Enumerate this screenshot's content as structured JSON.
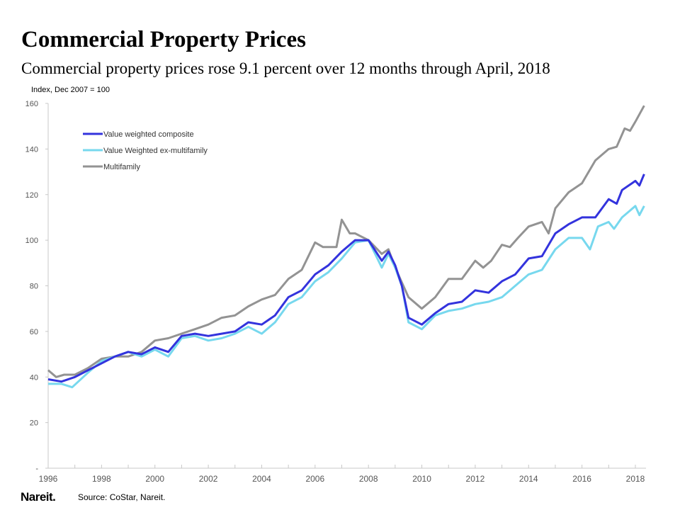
{
  "title": "Commercial Property Prices",
  "subtitle": "Commercial property prices rose 9.1 percent over 12 months through April, 2018",
  "source": "Source: CoStar, Nareit.",
  "logo_text": "Nareit.",
  "chart_data": {
    "type": "line",
    "ylabel": "Index, Dec 2007 = 100",
    "ylim": [
      0,
      160
    ],
    "xlim": [
      1996,
      2018.5
    ],
    "yticks": [
      "-",
      "20",
      "40",
      "60",
      "80",
      "100",
      "120",
      "140",
      "160"
    ],
    "xticks": [
      "1996",
      "1998",
      "2000",
      "2002",
      "2004",
      "2006",
      "2008",
      "2010",
      "2012",
      "2014",
      "2016",
      "2018"
    ],
    "grid": false,
    "legend": "top-left",
    "series": [
      {
        "name": "Value weighted composite",
        "color": "#3333dd",
        "points": [
          [
            1996,
            39
          ],
          [
            1996.5,
            38
          ],
          [
            1997,
            40
          ],
          [
            1997.5,
            43
          ],
          [
            1998,
            46
          ],
          [
            1998.5,
            49
          ],
          [
            1999,
            51
          ],
          [
            1999.5,
            50
          ],
          [
            2000,
            53
          ],
          [
            2000.5,
            51
          ],
          [
            2001,
            58
          ],
          [
            2001.5,
            59
          ],
          [
            2002,
            58
          ],
          [
            2002.5,
            59
          ],
          [
            2003,
            60
          ],
          [
            2003.5,
            64
          ],
          [
            2004,
            63
          ],
          [
            2004.5,
            67
          ],
          [
            2005,
            75
          ],
          [
            2005.5,
            78
          ],
          [
            2006,
            85
          ],
          [
            2006.5,
            89
          ],
          [
            2007,
            95
          ],
          [
            2007.5,
            100
          ],
          [
            2008,
            100
          ],
          [
            2008.5,
            91
          ],
          [
            2008.75,
            95
          ],
          [
            2009,
            89
          ],
          [
            2009.25,
            80
          ],
          [
            2009.5,
            66
          ],
          [
            2010,
            63
          ],
          [
            2010.5,
            68
          ],
          [
            2011,
            72
          ],
          [
            2011.5,
            73
          ],
          [
            2012,
            78
          ],
          [
            2012.5,
            77
          ],
          [
            2013,
            82
          ],
          [
            2013.5,
            85
          ],
          [
            2014,
            92
          ],
          [
            2014.5,
            93
          ],
          [
            2015,
            103
          ],
          [
            2015.5,
            107
          ],
          [
            2016,
            110
          ],
          [
            2016.5,
            110
          ],
          [
            2017,
            118
          ],
          [
            2017.3,
            116
          ],
          [
            2017.5,
            122
          ],
          [
            2018,
            126
          ],
          [
            2018.15,
            124
          ],
          [
            2018.33,
            129
          ]
        ]
      },
      {
        "name": "Value Weighted ex-multifamily",
        "color": "#77d8ee",
        "points": [
          [
            1996,
            37
          ],
          [
            1996.5,
            37
          ],
          [
            1996.9,
            35.5
          ],
          [
            1997.5,
            42
          ],
          [
            1998,
            47
          ],
          [
            1998.5,
            49
          ],
          [
            1999,
            51
          ],
          [
            1999.5,
            49
          ],
          [
            2000,
            52
          ],
          [
            2000.5,
            49
          ],
          [
            2001,
            57
          ],
          [
            2001.5,
            58
          ],
          [
            2002,
            56
          ],
          [
            2002.5,
            57
          ],
          [
            2003,
            59
          ],
          [
            2003.5,
            62
          ],
          [
            2004,
            59
          ],
          [
            2004.5,
            64
          ],
          [
            2005,
            72
          ],
          [
            2005.5,
            75
          ],
          [
            2006,
            82
          ],
          [
            2006.5,
            86
          ],
          [
            2007,
            92
          ],
          [
            2007.5,
            99
          ],
          [
            2008,
            100
          ],
          [
            2008.5,
            88
          ],
          [
            2008.75,
            94
          ],
          [
            2009,
            88
          ],
          [
            2009.25,
            80
          ],
          [
            2009.5,
            64
          ],
          [
            2010,
            61
          ],
          [
            2010.5,
            67
          ],
          [
            2011,
            69
          ],
          [
            2011.5,
            70
          ],
          [
            2012,
            72
          ],
          [
            2012.5,
            73
          ],
          [
            2013,
            75
          ],
          [
            2013.5,
            80
          ],
          [
            2014,
            85
          ],
          [
            2014.5,
            87
          ],
          [
            2015,
            96
          ],
          [
            2015.5,
            101
          ],
          [
            2016,
            101
          ],
          [
            2016.3,
            96
          ],
          [
            2016.6,
            106
          ],
          [
            2017,
            108
          ],
          [
            2017.2,
            105
          ],
          [
            2017.5,
            110
          ],
          [
            2018,
            115
          ],
          [
            2018.15,
            111
          ],
          [
            2018.33,
            115
          ]
        ]
      },
      {
        "name": "Multifamily",
        "color": "#939393",
        "points": [
          [
            1996,
            43
          ],
          [
            1996.3,
            40
          ],
          [
            1996.6,
            41
          ],
          [
            1997,
            41
          ],
          [
            1997.5,
            44
          ],
          [
            1998,
            48
          ],
          [
            1998.5,
            49
          ],
          [
            1999,
            49
          ],
          [
            1999.5,
            51
          ],
          [
            2000,
            56
          ],
          [
            2000.5,
            57
          ],
          [
            2001,
            59
          ],
          [
            2001.5,
            61
          ],
          [
            2002,
            63
          ],
          [
            2002.5,
            66
          ],
          [
            2003,
            67
          ],
          [
            2003.5,
            71
          ],
          [
            2004,
            74
          ],
          [
            2004.5,
            76
          ],
          [
            2005,
            83
          ],
          [
            2005.5,
            87
          ],
          [
            2006,
            99
          ],
          [
            2006.3,
            97
          ],
          [
            2006.5,
            97
          ],
          [
            2006.8,
            97
          ],
          [
            2007,
            109
          ],
          [
            2007.3,
            103
          ],
          [
            2007.5,
            103
          ],
          [
            2008,
            100
          ],
          [
            2008.5,
            94
          ],
          [
            2008.75,
            96
          ],
          [
            2009,
            88
          ],
          [
            2009.5,
            75
          ],
          [
            2010,
            70
          ],
          [
            2010.5,
            75
          ],
          [
            2011,
            83
          ],
          [
            2011.5,
            83
          ],
          [
            2012,
            91
          ],
          [
            2012.3,
            88
          ],
          [
            2012.6,
            91
          ],
          [
            2013,
            98
          ],
          [
            2013.3,
            97
          ],
          [
            2013.6,
            101
          ],
          [
            2014,
            106
          ],
          [
            2014.5,
            108
          ],
          [
            2014.75,
            103
          ],
          [
            2015,
            114
          ],
          [
            2015.5,
            121
          ],
          [
            2016,
            125
          ],
          [
            2016.5,
            135
          ],
          [
            2017,
            140
          ],
          [
            2017.3,
            141
          ],
          [
            2017.6,
            149
          ],
          [
            2017.8,
            148
          ],
          [
            2018,
            152
          ],
          [
            2018.33,
            159
          ]
        ]
      }
    ]
  }
}
